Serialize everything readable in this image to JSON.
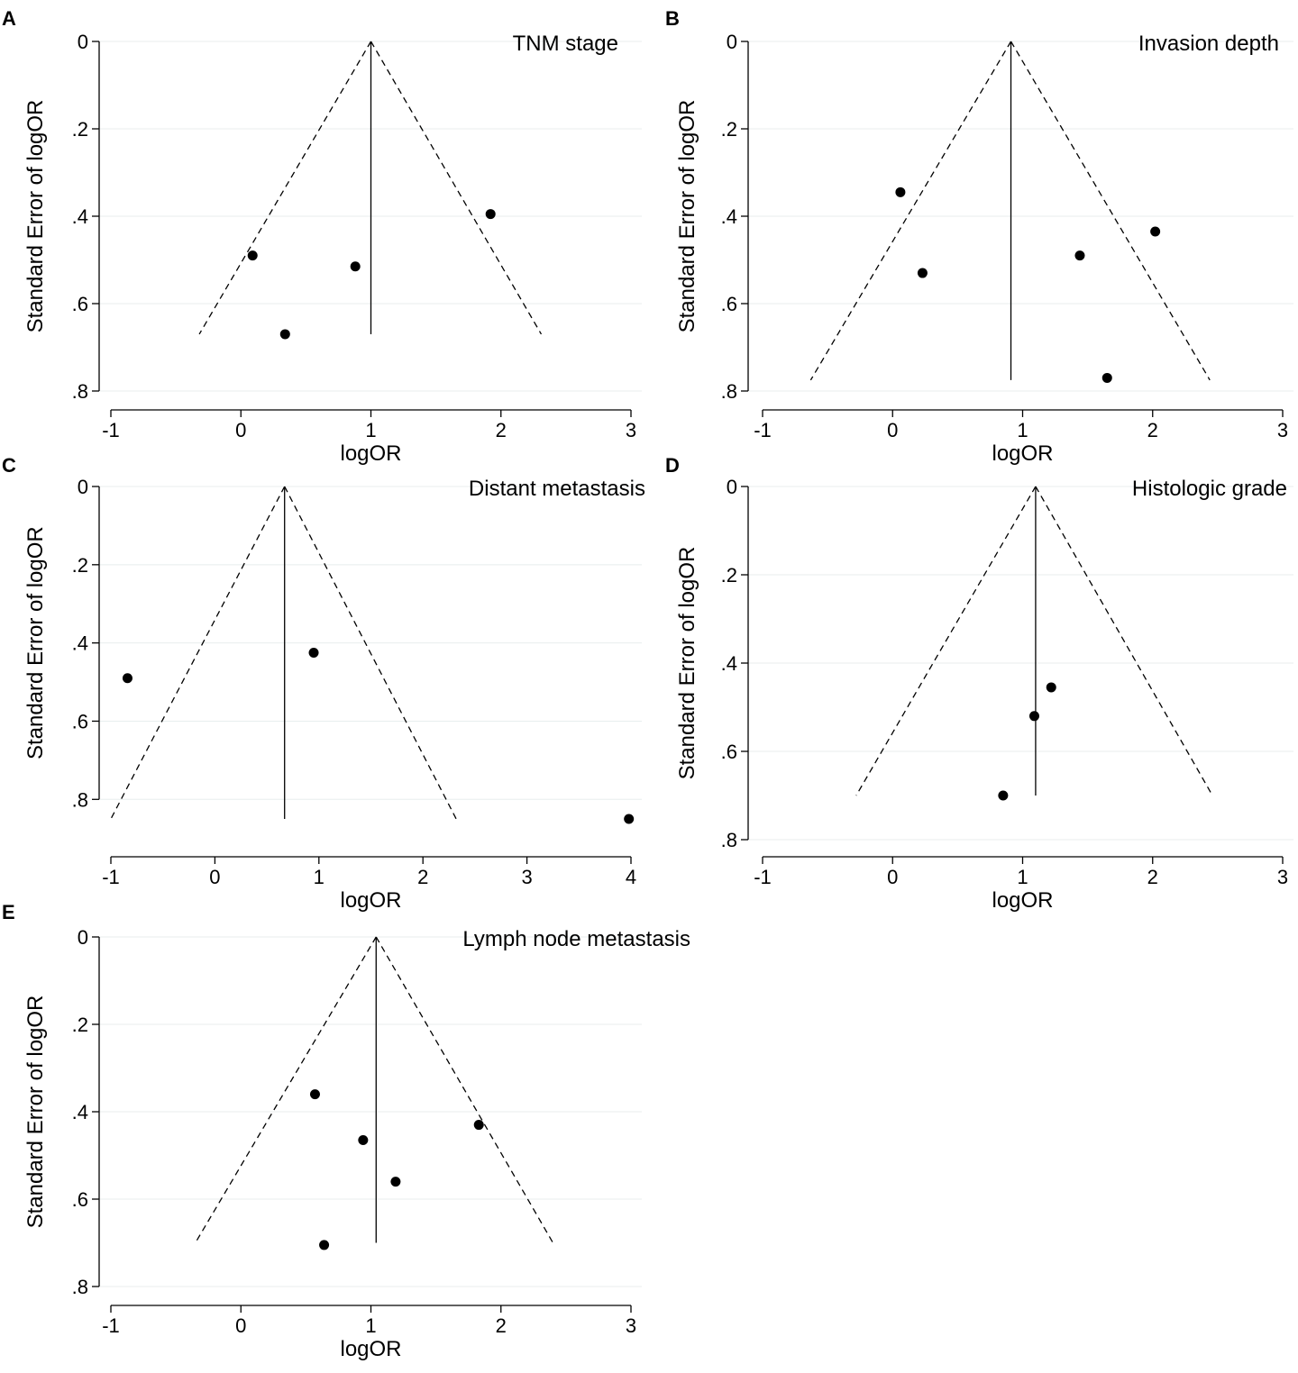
{
  "chart_data": [
    {
      "panel": "A",
      "type": "scatter",
      "title": "TNM stage",
      "xlabel": "logOR",
      "ylabel": "Standard Error of logOR",
      "xlim": [
        -1,
        3
      ],
      "ylim": [
        0,
        0.8
      ],
      "y_reversed": true,
      "x_ticks": [
        -1,
        0,
        1,
        2,
        3
      ],
      "x_tick_labels": [
        "-1",
        "0",
        "1",
        "2",
        "3"
      ],
      "y_ticks": [
        0,
        0.2,
        0.4,
        0.6,
        0.8
      ],
      "y_tick_labels": [
        "0",
        ".2",
        ".4",
        ".6",
        ".8"
      ],
      "pooled_logOR": 1.0,
      "funnel_max_se": 0.67,
      "funnel_left_x": -0.32,
      "funnel_right_x": 2.31,
      "points": [
        {
          "x": 0.09,
          "y": 0.49
        },
        {
          "x": 0.34,
          "y": 0.67
        },
        {
          "x": 0.88,
          "y": 0.515
        },
        {
          "x": 1.92,
          "y": 0.395
        }
      ]
    },
    {
      "panel": "B",
      "type": "scatter",
      "title": "Invasion depth",
      "xlabel": "logOR",
      "ylabel": "Standard Error of logOR",
      "xlim": [
        -1,
        3
      ],
      "ylim": [
        0,
        0.8
      ],
      "y_reversed": true,
      "x_ticks": [
        -1,
        0,
        1,
        2,
        3
      ],
      "x_tick_labels": [
        "-1",
        "0",
        "1",
        "2",
        "3"
      ],
      "y_ticks": [
        0,
        0.2,
        0.4,
        0.6,
        0.8
      ],
      "y_tick_labels": [
        "0",
        ".2",
        ".4",
        ".6",
        ".8"
      ],
      "pooled_logOR": 0.91,
      "funnel_max_se": 0.775,
      "funnel_left_x": -0.63,
      "funnel_right_x": 2.44,
      "points": [
        {
          "x": 0.06,
          "y": 0.345
        },
        {
          "x": 0.23,
          "y": 0.53
        },
        {
          "x": 1.44,
          "y": 0.49
        },
        {
          "x": 2.02,
          "y": 0.435
        },
        {
          "x": 1.65,
          "y": 0.77
        }
      ]
    },
    {
      "panel": "C",
      "type": "scatter",
      "title": "Distant metastasis",
      "xlabel": "logOR",
      "ylabel": "Standard Error of logOR",
      "xlim": [
        -1,
        4
      ],
      "ylim": [
        0,
        0.85
      ],
      "y_reversed": true,
      "x_ticks": [
        -1,
        0,
        1,
        2,
        3,
        4
      ],
      "x_tick_labels": [
        "-1",
        "0",
        "1",
        "2",
        "3",
        "4"
      ],
      "y_ticks": [
        0,
        0.2,
        0.4,
        0.6,
        0.8
      ],
      "y_tick_labels": [
        "0",
        ".2",
        ".4",
        ".6",
        ".8"
      ],
      "pooled_logOR": 0.67,
      "funnel_max_se": 0.85,
      "funnel_left_x": -1.0,
      "funnel_right_x": 2.32,
      "points": [
        {
          "x": -0.84,
          "y": 0.49
        },
        {
          "x": 0.95,
          "y": 0.425
        },
        {
          "x": 3.98,
          "y": 0.85
        }
      ]
    },
    {
      "panel": "D",
      "type": "scatter",
      "title": "Histologic grade",
      "xlabel": "logOR",
      "ylabel": "Standard Error of logOR",
      "xlim": [
        -1,
        3
      ],
      "ylim": [
        0,
        0.8
      ],
      "y_reversed": true,
      "x_ticks": [
        -1,
        0,
        1,
        2,
        3
      ],
      "x_tick_labels": [
        "-1",
        "0",
        "1",
        "2",
        "3"
      ],
      "y_ticks": [
        0,
        0.2,
        0.4,
        0.6,
        0.8
      ],
      "y_tick_labels": [
        "0",
        ".2",
        ".4",
        ".6",
        ".8"
      ],
      "pooled_logOR": 1.1,
      "funnel_max_se": 0.7,
      "funnel_left_x": -0.28,
      "funnel_right_x": 2.46,
      "points": [
        {
          "x": 1.22,
          "y": 0.455
        },
        {
          "x": 1.09,
          "y": 0.52
        },
        {
          "x": 0.85,
          "y": 0.7
        }
      ]
    },
    {
      "panel": "E",
      "type": "scatter",
      "title": "Lymph node metastasis",
      "xlabel": "logOR",
      "ylabel": "Standard Error of logOR",
      "xlim": [
        -1,
        3
      ],
      "ylim": [
        0,
        0.8
      ],
      "y_reversed": true,
      "x_ticks": [
        -1,
        0,
        1,
        2,
        3
      ],
      "x_tick_labels": [
        "-1",
        "0",
        "1",
        "2",
        "3"
      ],
      "y_ticks": [
        0,
        0.2,
        0.4,
        0.6,
        0.8
      ],
      "y_tick_labels": [
        "0",
        ".2",
        ".4",
        ".6",
        ".8"
      ],
      "pooled_logOR": 1.04,
      "funnel_max_se": 0.7,
      "funnel_left_x": -0.35,
      "funnel_right_x": 2.4,
      "points": [
        {
          "x": 0.57,
          "y": 0.36
        },
        {
          "x": 0.94,
          "y": 0.465
        },
        {
          "x": 1.19,
          "y": 0.56
        },
        {
          "x": 1.83,
          "y": 0.43
        },
        {
          "x": 0.64,
          "y": 0.705
        }
      ]
    }
  ]
}
